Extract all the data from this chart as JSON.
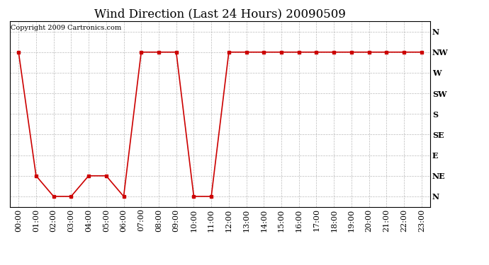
{
  "title": "Wind Direction (Last 24 Hours) 20090509",
  "copyright_text": "Copyright 2009 Cartronics.com",
  "x_labels": [
    "00:00",
    "01:00",
    "02:00",
    "03:00",
    "04:00",
    "05:00",
    "06:00",
    "07:00",
    "08:00",
    "09:00",
    "10:00",
    "11:00",
    "12:00",
    "13:00",
    "14:00",
    "15:00",
    "16:00",
    "17:00",
    "18:00",
    "19:00",
    "20:00",
    "21:00",
    "22:00",
    "23:00"
  ],
  "y_labels": [
    "N",
    "NE",
    "E",
    "SE",
    "S",
    "SW",
    "W",
    "NW",
    "N"
  ],
  "y_tick_positions": [
    0,
    1,
    2,
    3,
    4,
    5,
    6,
    7,
    8
  ],
  "wind_data": [
    7,
    1,
    0,
    0,
    1,
    1,
    0,
    7,
    7,
    7,
    0,
    0,
    7,
    7,
    7,
    7,
    7,
    7,
    7,
    7,
    7,
    7,
    7,
    7
  ],
  "line_color": "#cc0000",
  "marker": "s",
  "marker_size": 3,
  "bg_color": "#ffffff",
  "grid_color": "#aaaaaa",
  "title_fontsize": 12,
  "axis_label_fontsize": 8,
  "copyright_fontsize": 7,
  "figsize": [
    6.9,
    3.75
  ],
  "dpi": 100
}
